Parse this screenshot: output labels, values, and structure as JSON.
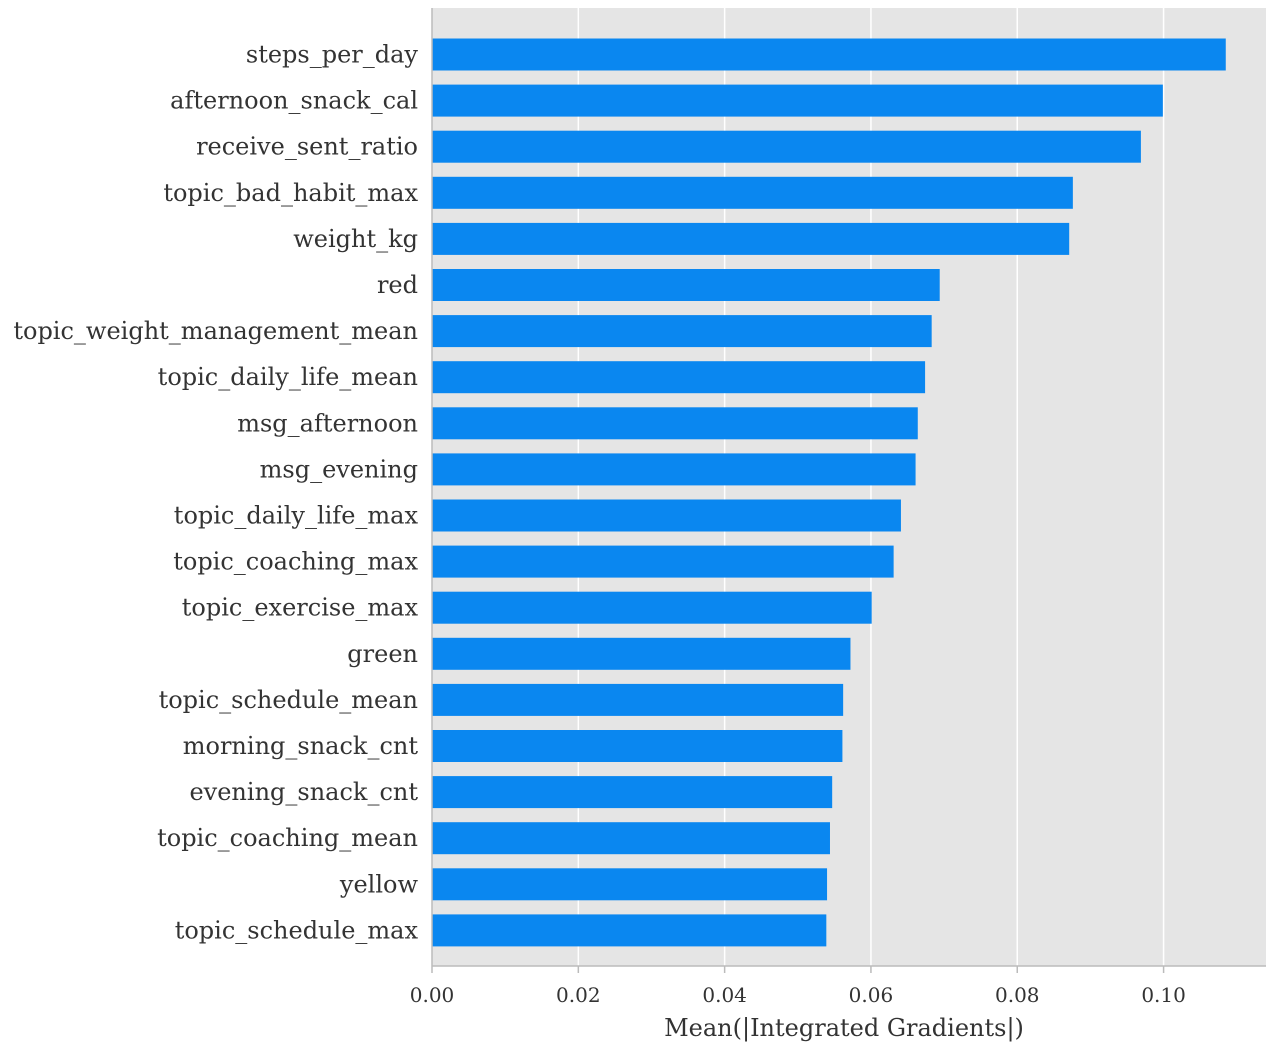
{
  "chart_data": {
    "type": "bar",
    "orientation": "horizontal",
    "categories": [
      "steps_per_day",
      "afternoon_snack_cal",
      "receive_sent_ratio",
      "topic_bad_habit_max",
      "weight_kg",
      "red",
      "topic_weight_management_mean",
      "topic_daily_life_mean",
      "msg_afternoon",
      "msg_evening",
      "topic_daily_life_max",
      "topic_coaching_max",
      "topic_exercise_max",
      "green",
      "topic_schedule_mean",
      "morning_snack_cnt",
      "evening_snack_cnt",
      "topic_coaching_mean",
      "yellow",
      "topic_schedule_max"
    ],
    "values": [
      0.1085,
      0.0999,
      0.0969,
      0.0876,
      0.0871,
      0.0694,
      0.0683,
      0.0674,
      0.0664,
      0.0661,
      0.0641,
      0.0631,
      0.0601,
      0.0572,
      0.0562,
      0.0561,
      0.0547,
      0.0544,
      0.054,
      0.0539
    ],
    "xlabel": "Mean(|Integrated Gradients|)",
    "ylabel": "",
    "title": "",
    "xlim": [
      0,
      0.114
    ],
    "xticks": [
      0.0,
      0.02,
      0.04,
      0.06,
      0.08,
      0.1
    ],
    "xtick_labels": [
      "0.00",
      "0.02",
      "0.04",
      "0.06",
      "0.08",
      "0.10"
    ],
    "grid": true,
    "colors": {
      "bar": "#0a87f0",
      "plot_background": "#e5e5e5",
      "grid": "#ffffff",
      "axis_line": "#bbbbbb",
      "text": "#333333"
    }
  }
}
